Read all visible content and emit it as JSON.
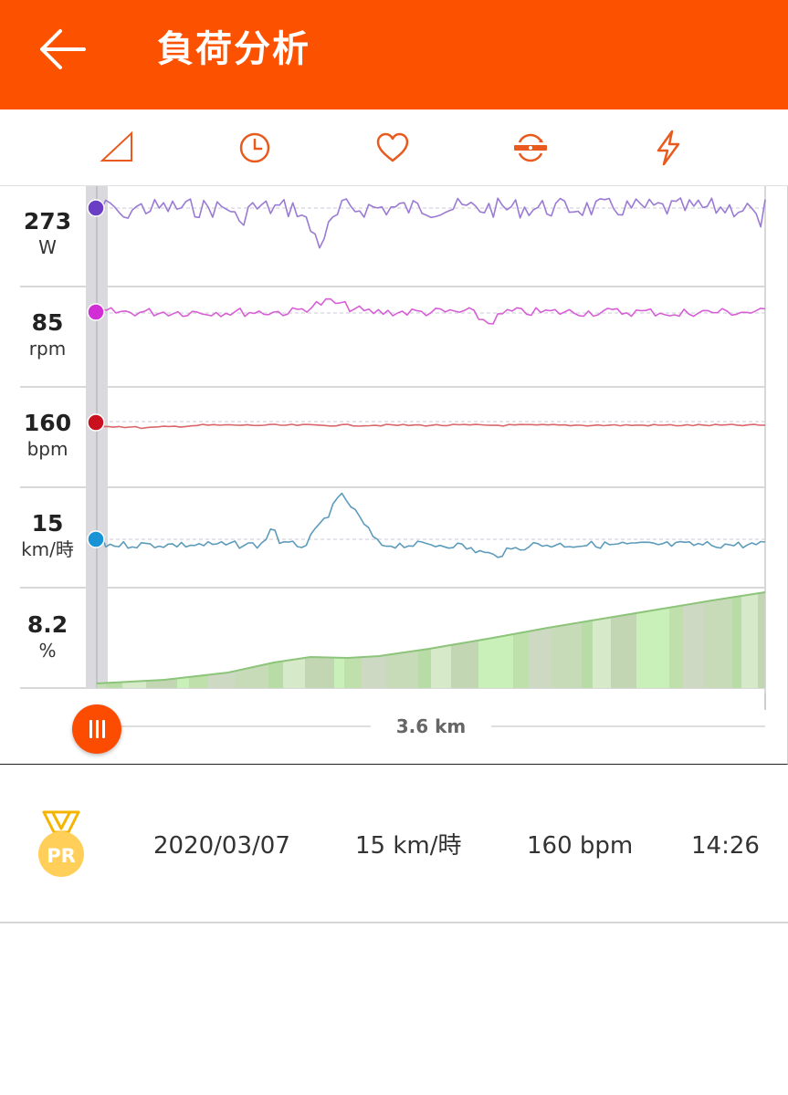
{
  "app_bar": {
    "title": "負荷分析",
    "back_icon": "arrow-left-icon"
  },
  "tabs": [
    {
      "id": "elevation",
      "icon": "triangle-icon"
    },
    {
      "id": "time",
      "icon": "clock-icon"
    },
    {
      "id": "heart_rate",
      "icon": "heart-icon"
    },
    {
      "id": "cadence",
      "icon": "crank-icon"
    },
    {
      "id": "power",
      "icon": "lightning-icon"
    }
  ],
  "chart": {
    "rows": [
      {
        "name": "power",
        "value": "273",
        "unit": "W",
        "color": "#6a3fc6",
        "line_color": "#9a7ad4"
      },
      {
        "name": "cadence",
        "value": "85",
        "unit": "rpm",
        "color": "#d22ed6",
        "line_color": "#d75fd6"
      },
      {
        "name": "heart-rate",
        "value": "160",
        "unit": "bpm",
        "color": "#c8101e",
        "line_color": "#d9676c"
      },
      {
        "name": "speed",
        "value": "15",
        "unit": "km/時",
        "color": "#1894d6",
        "line_color": "#5d9bbb"
      },
      {
        "name": "grade",
        "value": "8.2",
        "unit": "%",
        "color": "#a8d49a",
        "line_color": "#8cc47a"
      }
    ],
    "distance_label": "3.6 km",
    "accent": "#fc4c02"
  },
  "effort": {
    "badge": "PR",
    "date": "2020/03/07",
    "speed": "15 km/時",
    "heart_rate": "160 bpm",
    "time": "14:26"
  }
}
